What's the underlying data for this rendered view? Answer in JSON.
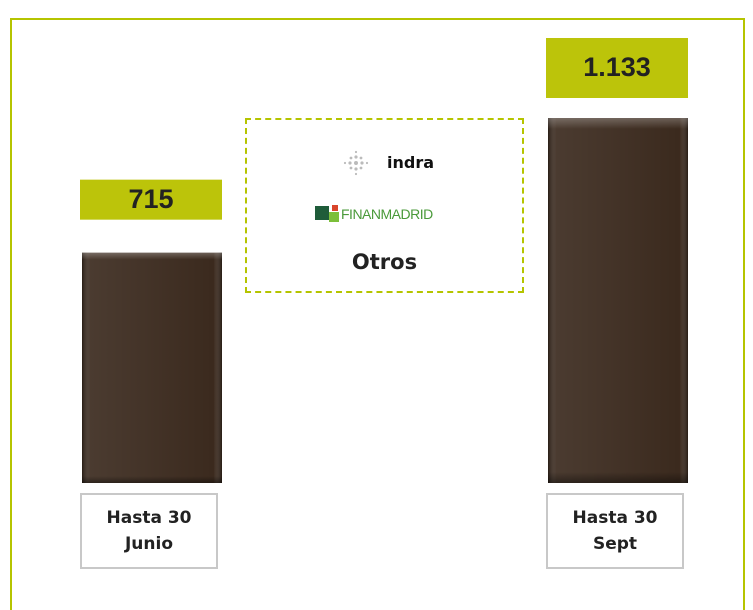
{
  "chart_data": {
    "type": "bar",
    "categories": [
      "Hasta 30 Junio",
      "Hasta 30 Sept"
    ],
    "values": [
      715,
      1133
    ],
    "value_labels": [
      "715",
      "1.133"
    ],
    "color": "#3b2a1e",
    "label_color": "#bcc40a",
    "annotations": [
      "indra",
      "FINANMADRID",
      "Otros"
    ]
  }
}
